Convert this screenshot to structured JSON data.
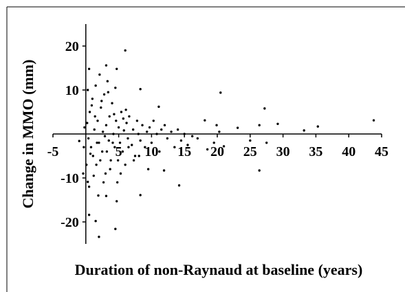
{
  "chart_data": {
    "type": "scatter",
    "x_label": "Duration of non-Raynaud at baseline (years)",
    "y_label": "Change in MMO (mm)",
    "xlim": [
      -5,
      45
    ],
    "ylim": [
      -25,
      25
    ],
    "xticks": [
      -5,
      5,
      10,
      15,
      20,
      25,
      30,
      35,
      40,
      45
    ],
    "yticks": [
      -20,
      -10,
      10,
      20
    ],
    "series": [
      {
        "color": "#000000",
        "x": [
          6,
          20.5,
          27.2,
          43.8,
          35.3,
          33.2,
          29.2,
          26.4,
          23.1,
          19.9,
          18.1,
          26.4,
          14.2,
          11.9,
          8.3,
          8.3,
          11.1,
          4.5,
          2,
          1.5,
          0.5,
          0.3,
          3.1,
          4.7,
          0.5,
          3.1,
          4.7,
          0.2,
          0.4,
          0.6,
          0.8,
          1,
          1.1,
          1.3,
          1.5,
          1.6,
          1.8,
          2,
          2.1,
          2.3,
          2.5,
          2.6,
          2.8,
          3,
          3.1,
          3.3,
          3.5,
          3.6,
          3.8,
          4,
          4.2,
          4.4,
          4.6,
          4.8,
          5,
          5.2,
          5.4,
          5.6,
          5.8,
          6,
          6.2,
          6.4,
          6.6,
          7,
          7.2,
          7.5,
          7.8,
          8,
          8.3,
          8.6,
          9,
          9.3,
          9.7,
          10,
          10.3,
          10.8,
          11.2,
          11.5,
          12,
          12.4,
          13,
          13.5,
          14,
          14.5,
          15,
          15.5,
          16.2,
          17,
          18.5,
          19.5,
          20.3,
          21,
          25,
          27.5,
          0.1,
          0.3,
          0.5,
          0.7,
          0.9,
          1.2,
          1.4,
          1.7,
          1.9,
          2.2,
          2.4,
          2.7,
          2.9,
          3.2,
          3.4,
          3.7,
          4.1,
          4.3,
          4.5,
          4.9,
          5.3,
          5.7,
          6.1,
          6.5,
          7.3,
          8.1,
          9.5,
          -0.3,
          -0.2,
          -1,
          -0.4
        ],
        "values": [
          19,
          9.4,
          5.8,
          3.1,
          1.7,
          0.8,
          2.3,
          2,
          1.4,
          2,
          3.1,
          -8.3,
          -11.7,
          -8.3,
          -13.9,
          10.2,
          6.2,
          -21.6,
          -23.4,
          -19.8,
          -18.4,
          -10.9,
          -14.1,
          -15.3,
          14.8,
          15.6,
          14.8,
          2.5,
          -1,
          5,
          -3,
          8,
          -5,
          1,
          11,
          -7,
          3,
          -2,
          13.5,
          6,
          -4,
          0.5,
          9,
          -9,
          2,
          12,
          -1.5,
          4,
          -6,
          7,
          0,
          -3,
          3,
          -11,
          1.5,
          -2,
          5,
          -4,
          0.8,
          -7,
          2.5,
          -1,
          4,
          -2.5,
          1,
          -5,
          3,
          0,
          -1.5,
          2,
          -3,
          0.5,
          1.5,
          -2,
          3,
          0,
          -4,
          1,
          2,
          -1,
          0.5,
          -3,
          1,
          -1.5,
          0,
          -2.5,
          -0.5,
          -1,
          -3.5,
          -2,
          0.5,
          -2.8,
          -1.5,
          -2,
          -7,
          10,
          -12,
          -4.5,
          6.5,
          -9.5,
          4,
          -2,
          -14,
          -6,
          7.5,
          -11,
          -0.5,
          -4,
          9.5,
          -8,
          -2,
          4.5,
          10.5,
          -6,
          -9,
          3.5,
          5.5,
          -3,
          -6,
          -5,
          -8,
          -3,
          1.5,
          -1.6,
          -9
        ]
      }
    ]
  }
}
